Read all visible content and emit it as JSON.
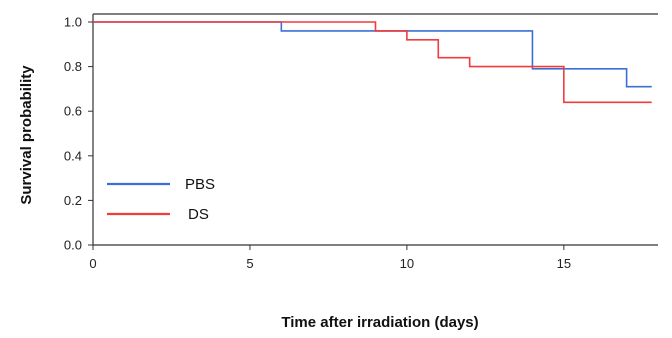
{
  "chart_data": {
    "type": "line",
    "subtype": "step",
    "title": "",
    "xlabel": "Time after irradiation (days)",
    "ylabel": "Survival probability",
    "xlim": [
      0,
      18
    ],
    "ylim": [
      0,
      1.0
    ],
    "x_ticks": [
      "0",
      "5",
      "10",
      "15"
    ],
    "y_ticks": [
      "0.0",
      "0.2",
      "0.4",
      "0.6",
      "0.8",
      "1.0"
    ],
    "grid": false,
    "legend_position": "lower-left",
    "series": [
      {
        "name": "PBS",
        "color": "#3b6fd6",
        "x": [
          0,
          6,
          14,
          17,
          17.8
        ],
        "y": [
          1.0,
          0.96,
          0.79,
          0.71,
          0.71
        ]
      },
      {
        "name": "DS",
        "color": "#f03c3c",
        "x": [
          0,
          9,
          10,
          11,
          12,
          15,
          17.8
        ],
        "y": [
          1.0,
          0.96,
          0.92,
          0.84,
          0.8,
          0.64,
          0.64
        ]
      }
    ]
  }
}
